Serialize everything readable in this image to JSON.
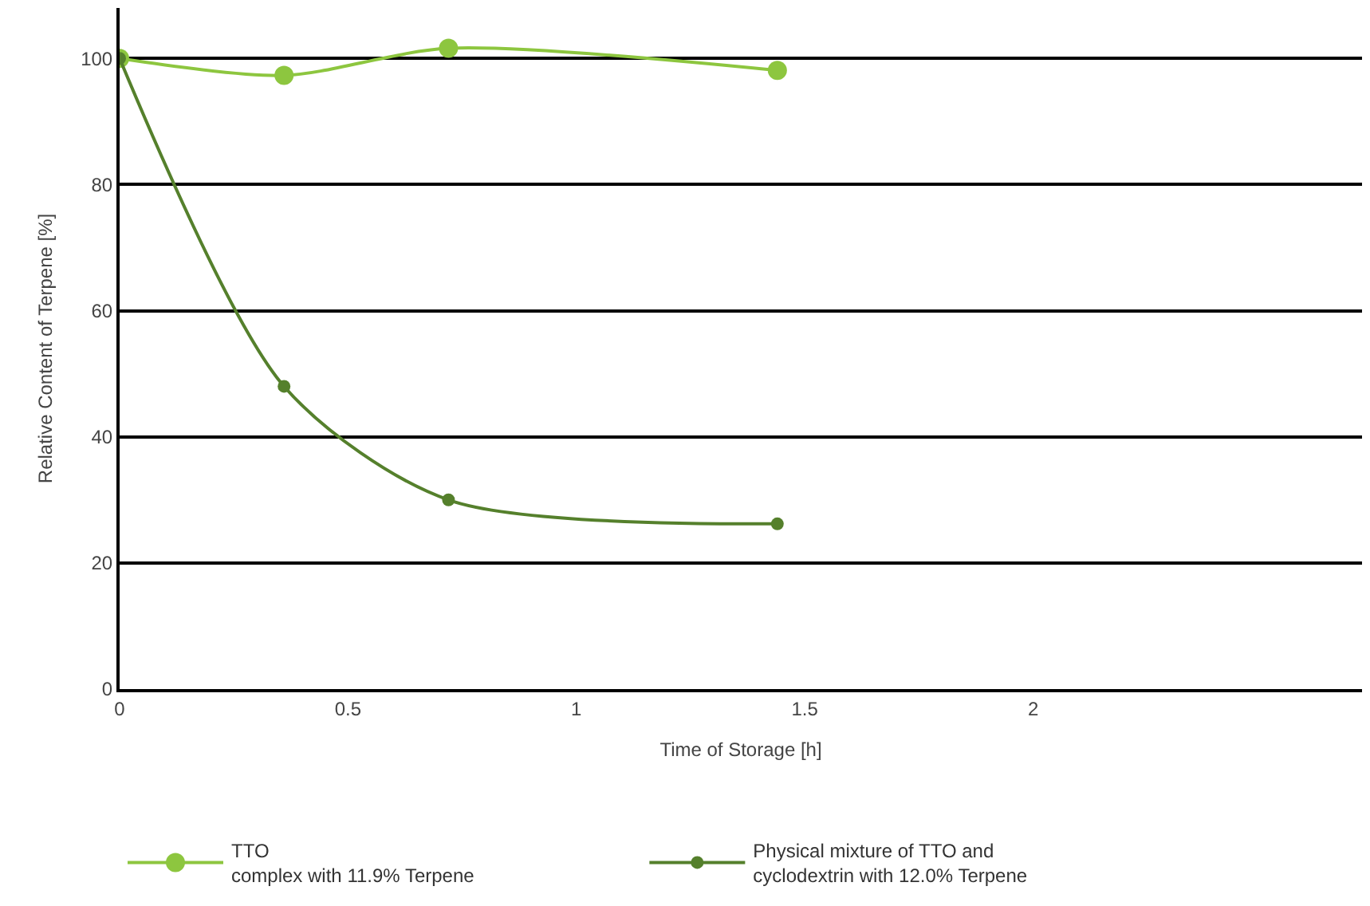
{
  "chart_data": {
    "type": "line",
    "xlabel": "Time of Storage [h]",
    "ylabel": "Relative Content of Terpene [%]",
    "xlim": [
      0,
      2.72
    ],
    "xticks": [
      0,
      0.5,
      1,
      1.5,
      2
    ],
    "ylim": [
      0,
      108
    ],
    "yticks": [
      0,
      20,
      40,
      60,
      80,
      100
    ],
    "grid": "y",
    "legend": "bottom",
    "marker": "circle",
    "line_style": "solid",
    "series": [
      {
        "name": "TTO\ncomplex with 11.9% Terpene",
        "color": "#8dc63f",
        "x": [
          0,
          0.36,
          0.72,
          1.44
        ],
        "values": [
          100,
          97.3,
          101.6,
          98.1
        ]
      },
      {
        "name": "Physical mixture of TTO and\ncyclodextrin with 12.0% Terpene",
        "color": "#55802c",
        "x": [
          0,
          0.36,
          0.72,
          1.44
        ],
        "values": [
          100,
          48,
          30,
          26.2
        ]
      }
    ]
  }
}
